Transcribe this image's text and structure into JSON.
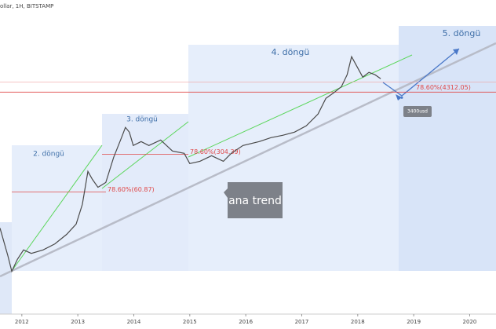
{
  "chart_data": {
    "type": "line",
    "title": "ollar, 1H, BITSTAMP",
    "log_scale": true,
    "color": "#4a4a4a",
    "x": [
      2011.61,
      2011.75,
      2011.82,
      2011.92,
      2012.03,
      2012.17,
      2012.38,
      2012.59,
      2012.8,
      2012.97,
      2013.08,
      2013.18,
      2013.26,
      2013.36,
      2013.5,
      2013.64,
      2013.78,
      2013.85,
      2013.92,
      2013.99,
      2014.13,
      2014.27,
      2014.48,
      2014.69,
      2014.9,
      2015.0,
      2015.18,
      2015.39,
      2015.6,
      2015.74,
      2015.95,
      2016.24,
      2016.45,
      2016.66,
      2016.87,
      2017.08,
      2017.29,
      2017.43,
      2017.57,
      2017.71,
      2017.81,
      2017.89,
      2017.99,
      2018.09,
      2018.2,
      2018.31,
      2018.41
    ],
    "values": [
      13,
      4,
      2.05,
      3.4,
      5.1,
      4.4,
      5.1,
      6.6,
      9.9,
      15.4,
      35.6,
      146,
      104,
      74,
      91,
      266,
      616,
      954,
      780,
      441,
      521,
      441,
      558,
      349,
      315,
      204,
      225,
      285,
      225,
      315,
      441,
      521,
      616,
      682,
      780,
      1020,
      1686,
      3300,
      4175,
      5460,
      9034,
      19540,
      12640,
      8170,
      9995,
      9034,
      7640
    ],
    "xlim": [
      2011.61,
      2020.47
    ],
    "ylim": [
      0.33,
      220000
    ],
    "xticks": [
      2012,
      2013,
      2014,
      2015,
      2016,
      2017,
      2018,
      2019,
      2020
    ],
    "levels": [
      {
        "value": 60.87,
        "label": "78.60%(60.87)"
      },
      {
        "value": 304.39,
        "label": "78.60%(304.39)"
      },
      {
        "value": 4312.05,
        "label": "78.60%(4312.05)"
      }
    ],
    "target": {
      "value": 3400,
      "label": "3400usd"
    },
    "cycles": [
      "2. döngü",
      "3. döngü",
      "4. döngü",
      "5. döngü"
    ],
    "trend_label": "ana trend"
  }
}
